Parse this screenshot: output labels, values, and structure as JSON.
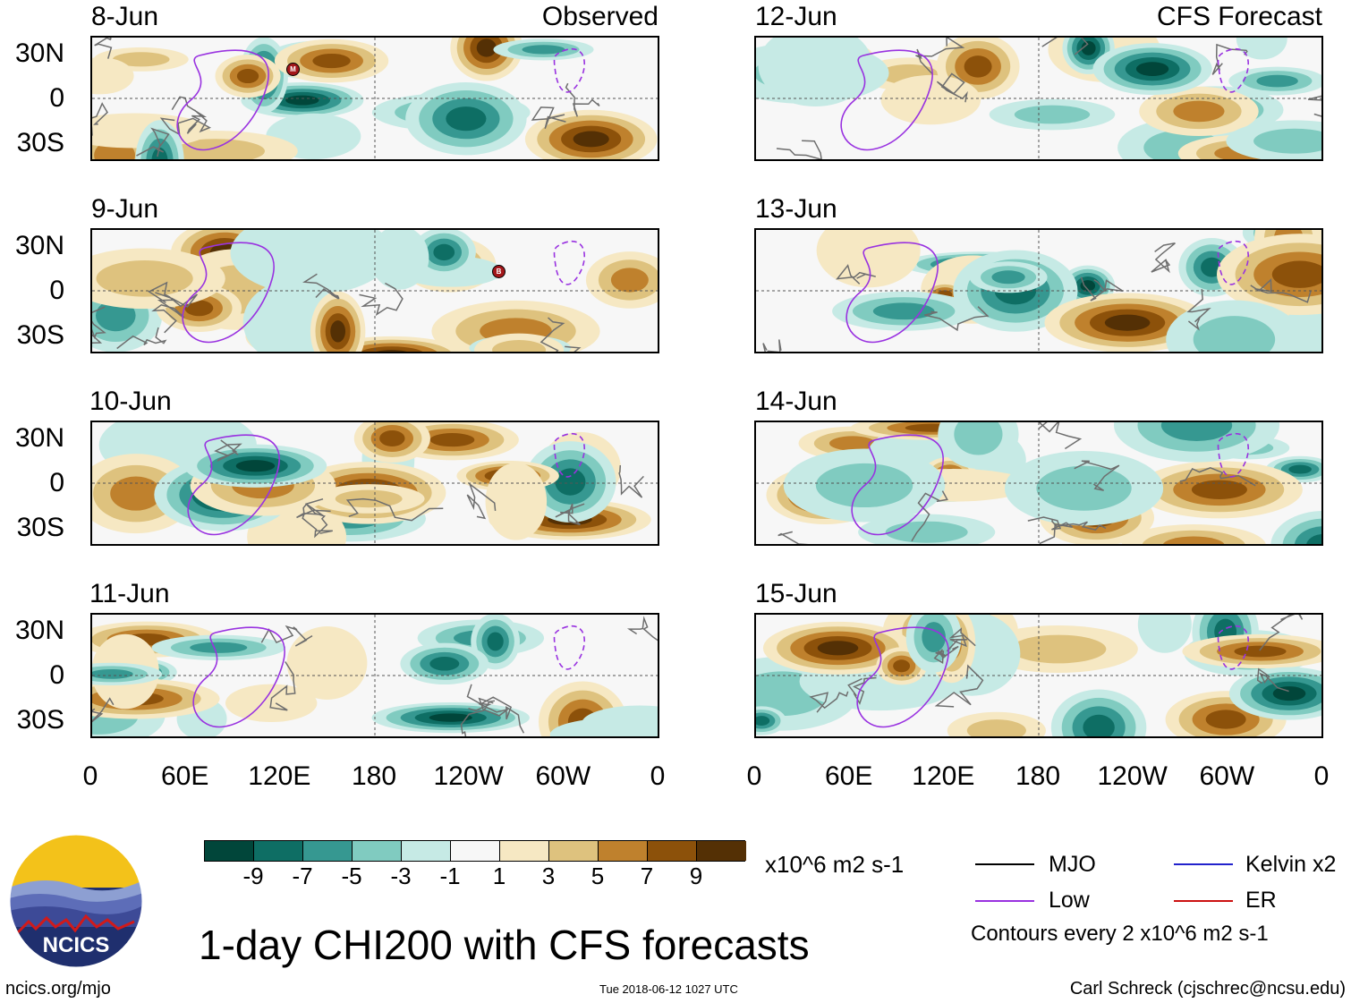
{
  "panels": {
    "left": {
      "header": "Observed",
      "dates": [
        "8-Jun",
        "9-Jun",
        "10-Jun",
        "11-Jun"
      ],
      "markers": [
        {
          "panel": "8-Jun",
          "label": "M"
        },
        {
          "panel": "9-Jun",
          "label": "B"
        }
      ]
    },
    "right": {
      "header": "CFS Forecast",
      "dates": [
        "12-Jun",
        "13-Jun",
        "14-Jun",
        "15-Jun"
      ]
    }
  },
  "lat_labels": [
    "30N",
    "0",
    "30S"
  ],
  "lon_labels": [
    "0",
    "60E",
    "120E",
    "180",
    "120W",
    "60W",
    "0"
  ],
  "colorbar": {
    "colors": [
      "#01463a",
      "#0e6e64",
      "#369891",
      "#80cbc0",
      "#c6eae5",
      "#f7f7f7",
      "#f6e8c3",
      "#dec27e",
      "#bf812d",
      "#8c510a",
      "#543005"
    ],
    "labels": [
      "-9",
      "-7",
      "-5",
      "-3",
      "-1",
      "1",
      "3",
      "5",
      "7",
      "9"
    ],
    "units": "x10^6 m2 s-1"
  },
  "legend": {
    "items": [
      {
        "label": "MJO",
        "color": "#000000"
      },
      {
        "label": "Low",
        "color": "#9932e0"
      },
      {
        "label": "Kelvin x2",
        "color": "#2222cc"
      },
      {
        "label": "ER",
        "color": "#cc1111"
      }
    ],
    "contour_note": "Contours every 2 x10^6 m2 s-1"
  },
  "title": "1-day CHI200 with CFS forecasts",
  "logo": {
    "text": "NCICS"
  },
  "footer": {
    "url": "ncics.org/mjo",
    "timestamp": "Tue 2018-06-12 1027 UTC",
    "credit": "Carl Schreck (cjschrec@ncsu.edu)"
  }
}
